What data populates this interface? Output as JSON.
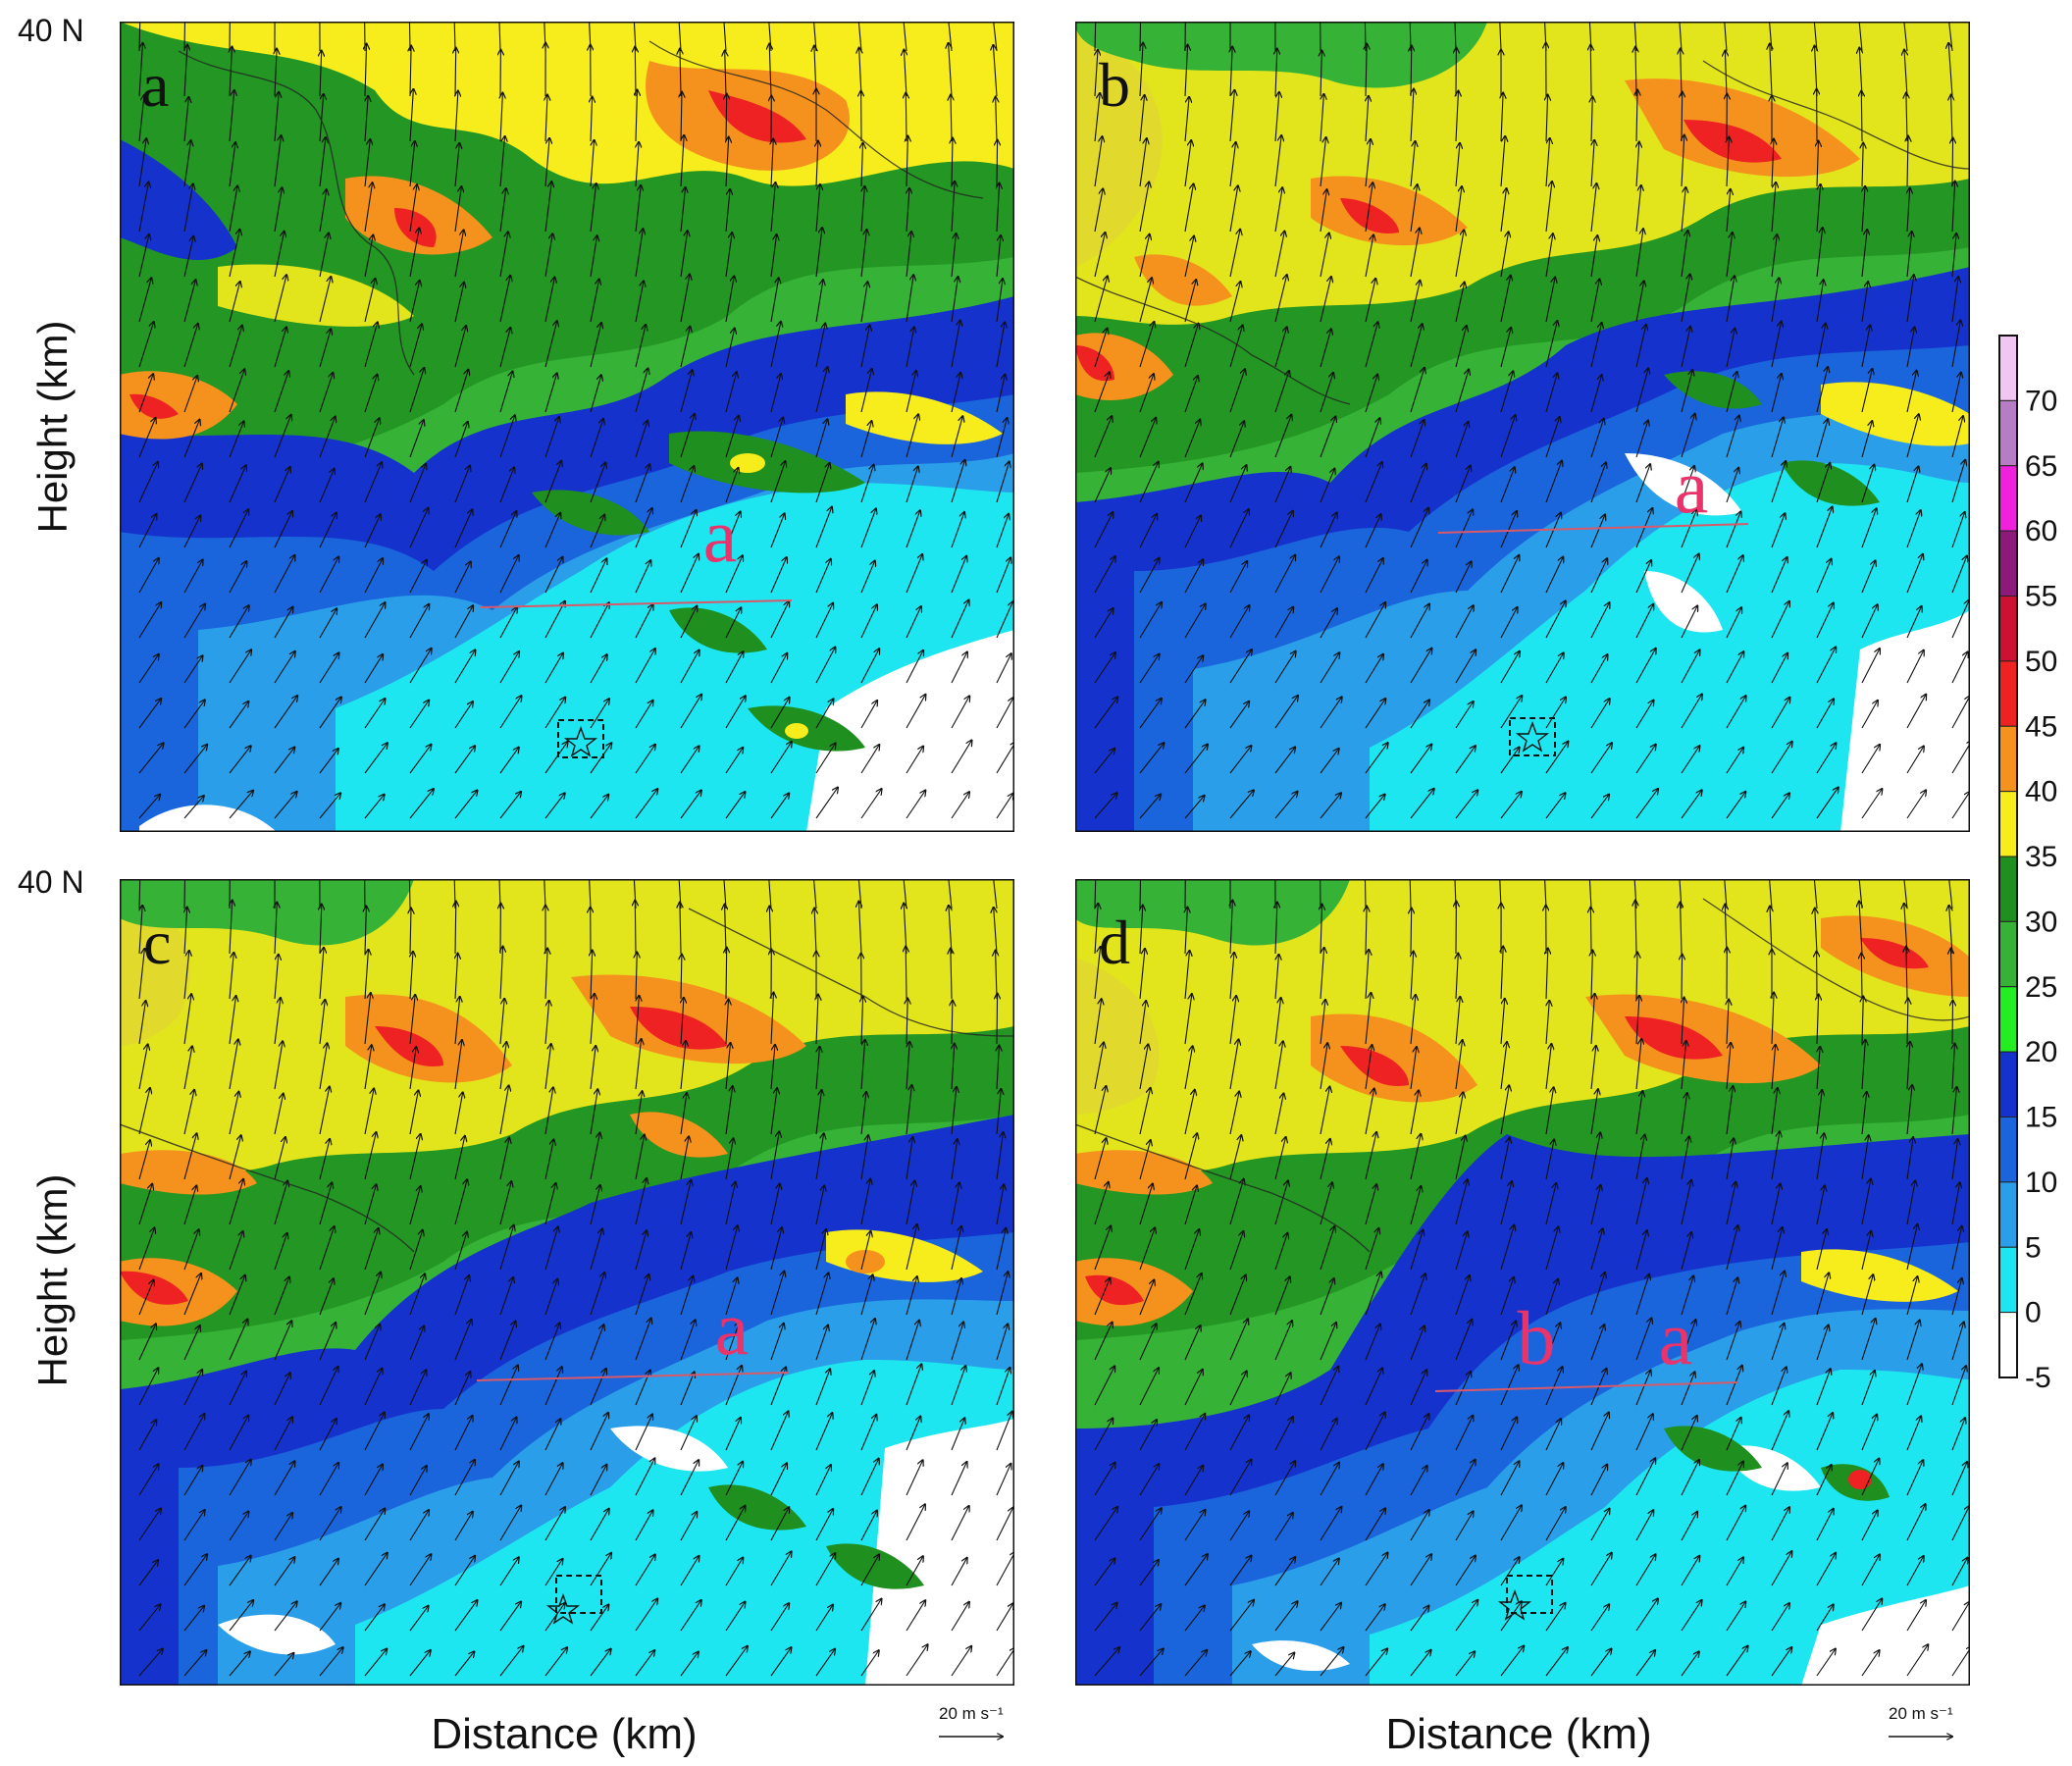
{
  "figure": {
    "latitude_label": "40 N",
    "ylabel": "Height (km)",
    "xlabel": "Distance (km)",
    "vector_key_label": "20 m s⁻¹",
    "panels": [
      {
        "letter": "a",
        "annotations": [
          {
            "text": "a",
            "color": "#e8336b"
          }
        ]
      },
      {
        "letter": "b",
        "annotations": [
          {
            "text": "a",
            "color": "#e8336b"
          }
        ]
      },
      {
        "letter": "c",
        "annotations": [
          {
            "text": "a",
            "color": "#e8336b"
          }
        ]
      },
      {
        "letter": "d",
        "annotations": [
          {
            "text": "b",
            "color": "#e8336b"
          },
          {
            "text": "a",
            "color": "#e8336b"
          }
        ]
      }
    ],
    "colorbar": {
      "levels": [
        "70",
        "65",
        "60",
        "55",
        "50",
        "45",
        "40",
        "35",
        "30",
        "25",
        "20",
        "15",
        "10",
        "5",
        "0",
        "-5"
      ],
      "colors": [
        "#f2c6f2",
        "#b67cc4",
        "#ee22dd",
        "#8b1a7a",
        "#cc1133",
        "#ee2222",
        "#f5921e",
        "#f7ec1c",
        "#1f8f1f",
        "#36b236",
        "#22ee22",
        "#1632cc",
        "#1a64dc",
        "#2a9ee8",
        "#1ee6f0",
        "#ffffff"
      ]
    }
  }
}
